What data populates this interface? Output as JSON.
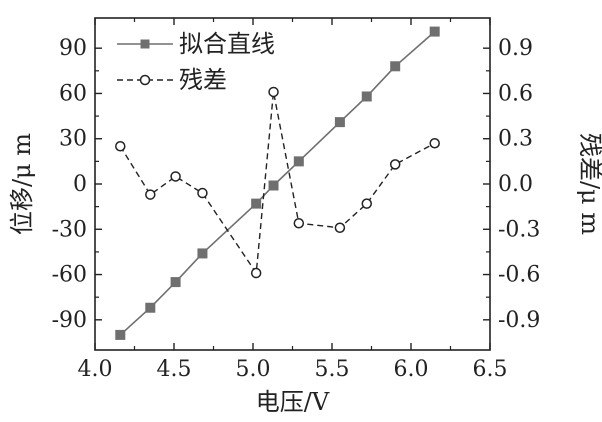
{
  "chart_data": {
    "type": "line",
    "xlabel": "电压/V",
    "ylabel_left": "位移/μ m",
    "ylabel_right": "残差/μ m",
    "xlim": [
      4.0,
      6.5
    ],
    "ylim_left": [
      -110,
      110
    ],
    "ylim_right": [
      -1.1,
      1.1
    ],
    "x_ticks": [
      "4.0",
      "4.5",
      "5.0",
      "5.5",
      "6.0",
      "6.5"
    ],
    "y_left_ticks": [
      "-90",
      "-60",
      "-30",
      "0",
      "30",
      "60",
      "90"
    ],
    "y_right_ticks": [
      "-0.9",
      "-0.6",
      "-0.3",
      "0.0",
      "0.3",
      "0.6",
      "0.9"
    ],
    "grid": false,
    "legend_position": "top-left",
    "series": [
      {
        "name": "拟合直线",
        "axis": "left",
        "style": "solid line, filled square markers",
        "color": "#6f6f6f",
        "x": [
          4.16,
          4.35,
          4.51,
          4.68,
          5.02,
          5.13,
          5.29,
          5.55,
          5.72,
          5.9,
          6.15
        ],
        "y": [
          -100,
          -82,
          -65,
          -46,
          -13,
          -1,
          15,
          41,
          58,
          78,
          101
        ]
      },
      {
        "name": "残差",
        "axis": "right",
        "style": "dashed line, open circle markers",
        "color": "#222222",
        "x": [
          4.16,
          4.35,
          4.51,
          4.68,
          5.02,
          5.13,
          5.29,
          5.55,
          5.72,
          5.9,
          6.15
        ],
        "y": [
          0.25,
          -0.07,
          0.05,
          -0.06,
          -0.59,
          0.61,
          -0.26,
          -0.29,
          -0.13,
          0.13,
          0.27
        ]
      }
    ]
  }
}
